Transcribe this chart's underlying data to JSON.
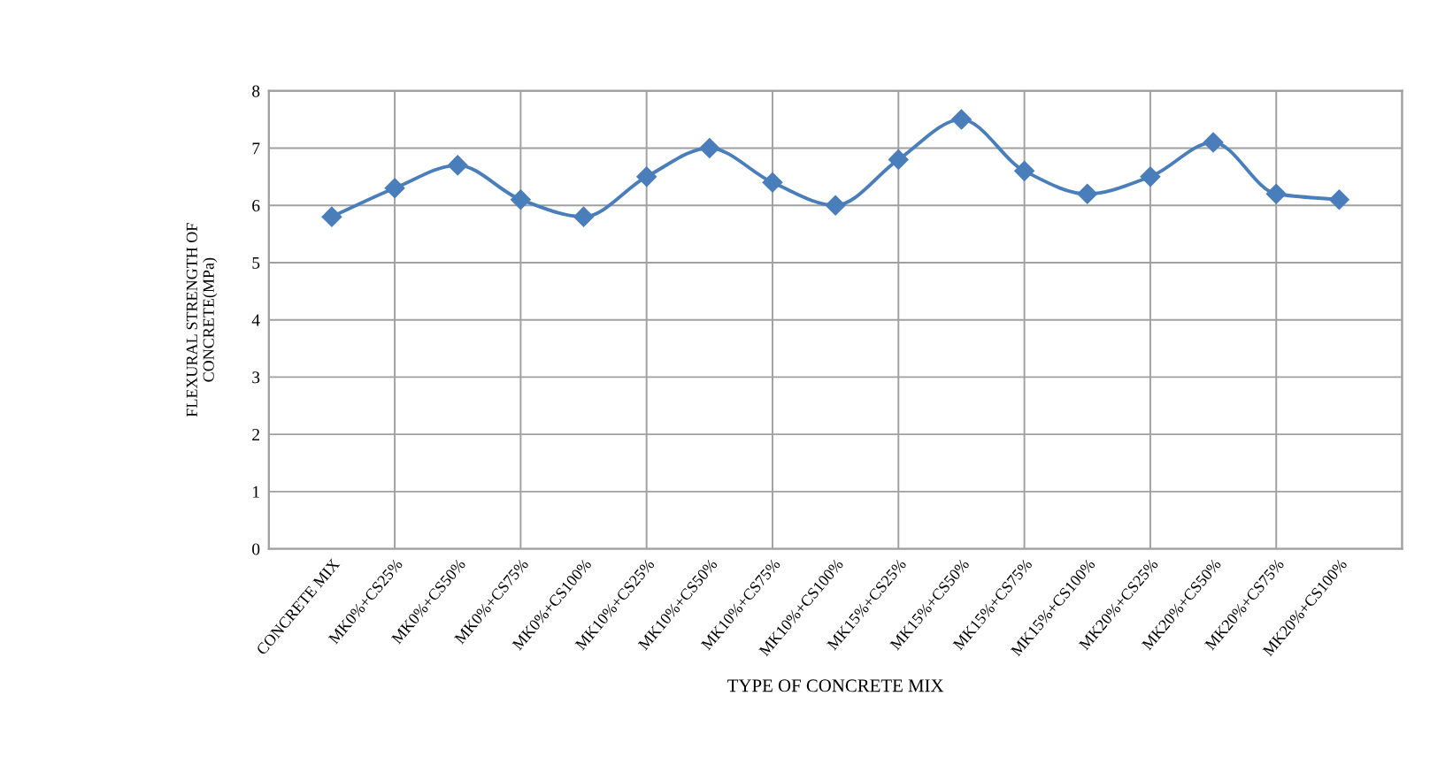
{
  "chart_data": {
    "type": "line",
    "xlabel": "TYPE OF CONCRETE MIX",
    "ylabel": "FLEXURAL STRENGTH OF\nCONCRETE(MPa)",
    "categories": [
      "CONCRETE MIX",
      "MK0%+CS25%",
      "MK0%+CS50%",
      "MK0%+CS75%",
      "MK0%+CS100%",
      "MK10%+CS25%",
      "MK10%+CS50%",
      "MK10%+CS75%",
      "MK10%+CS100%",
      "MK15%+CS25%",
      "MK15%+CS50%",
      "MK15%+CS75%",
      "MK15%+CS100%",
      "MK20%+CS25%",
      "MK20%+CS50%",
      "MK20%+CS75%",
      "MK20%+CS100%"
    ],
    "series": [
      {
        "color": "#4a7ebb",
        "values": [
          5.8,
          6.3,
          6.7,
          6.1,
          5.8,
          6.5,
          7.0,
          6.4,
          6.0,
          6.8,
          7.5,
          6.6,
          6.2,
          6.5,
          7.1,
          6.2,
          6.1
        ]
      }
    ],
    "ylim": [
      0,
      8
    ],
    "yticks": [
      0,
      1,
      2,
      3,
      4,
      5,
      6,
      7,
      8
    ],
    "grid": true,
    "marker": "diamond",
    "line_style": "solid",
    "legend": false
  }
}
